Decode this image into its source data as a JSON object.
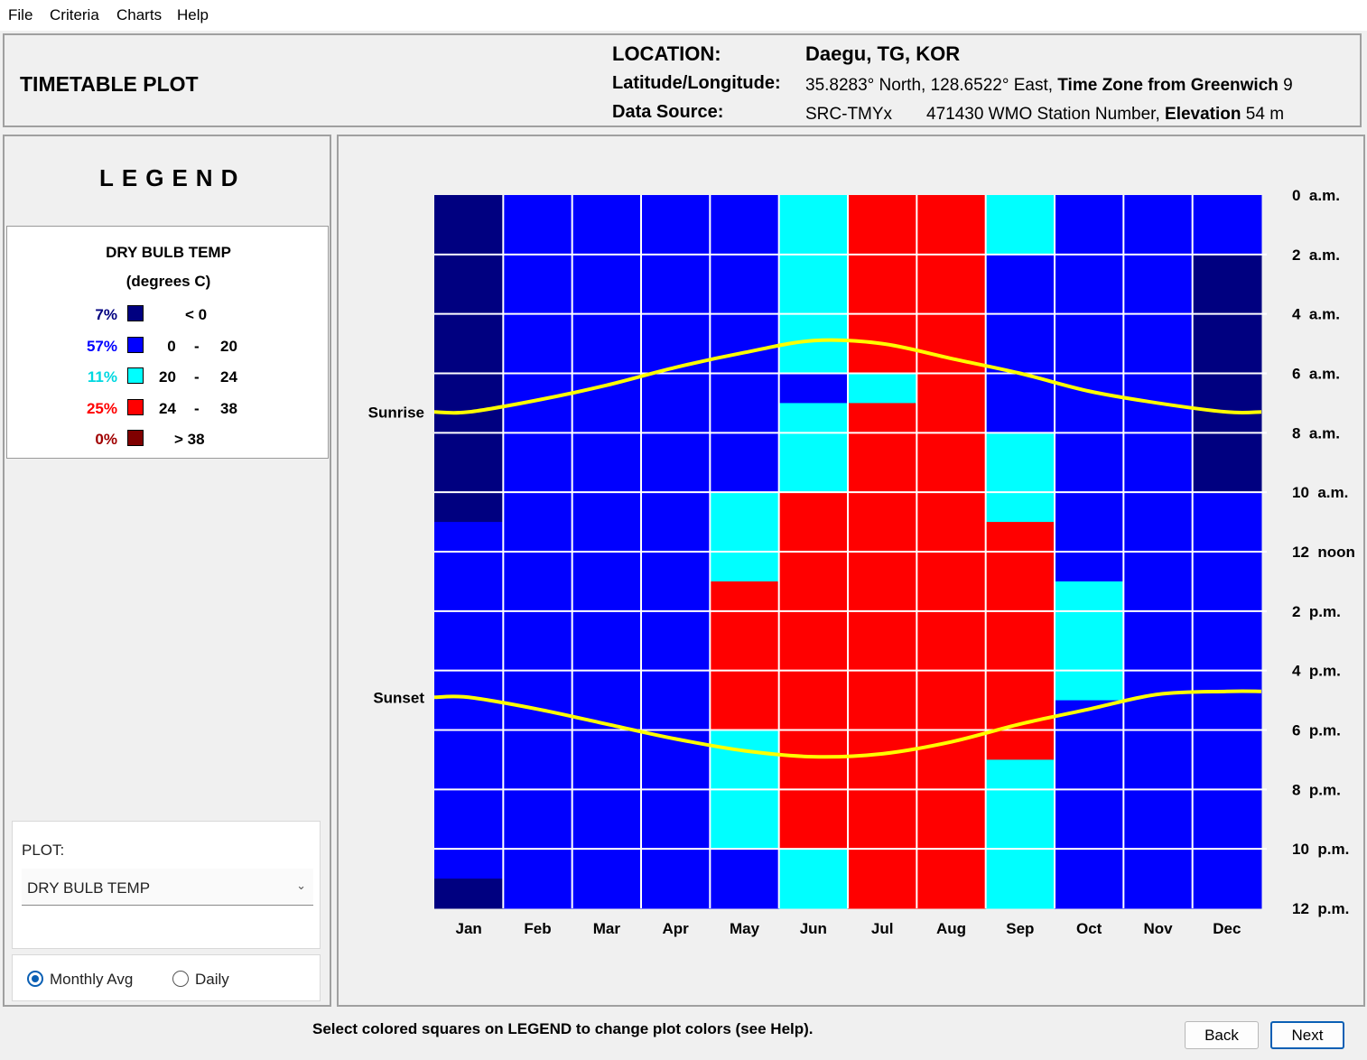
{
  "menu": [
    "File",
    "Criteria",
    "Charts",
    "Help"
  ],
  "header": {
    "title": "TIMETABLE PLOT",
    "location_label": "LOCATION:",
    "location_value": "Daegu, TG, KOR",
    "latlon_label": "Latitude/Longitude:",
    "latlon_value": "35.8283° North, 128.6522° East,",
    "tz_label": "Time Zone from Greenwich",
    "tz_value": "9",
    "source_label": "Data Source:",
    "source_value": "SRC-TMYx",
    "station_value": "471430 WMO Station Number,",
    "elevation_label": "Elevation",
    "elevation_value": "54 m"
  },
  "legend": {
    "title": "LEGEND",
    "variable": "DRY BULB TEMP",
    "units": "(degrees C)",
    "rows": [
      {
        "pct": "7%",
        "low": "< 0",
        "dash": "",
        "high": "",
        "color": "#000080"
      },
      {
        "pct": "57%",
        "low": "0",
        "dash": "-",
        "high": "20",
        "color": "#0000ff"
      },
      {
        "pct": "11%",
        "low": "20",
        "dash": "-",
        "high": "24",
        "color": "#00ffff"
      },
      {
        "pct": "25%",
        "low": "24",
        "dash": "-",
        "high": "38",
        "color": "#ff0000"
      },
      {
        "pct": "0%",
        "low": "> 38",
        "dash": "",
        "high": "",
        "color": "#800000"
      }
    ]
  },
  "plot": {
    "label": "PLOT:",
    "selected": "DRY BULB TEMP",
    "radio_monthly": "Monthly Avg",
    "radio_daily": "Daily",
    "selected_mode": "Monthly Avg"
  },
  "footer": {
    "note_prefix": "Select colored squares on ",
    "note_bold": "LEGEND",
    "note_suffix": " to change plot colors (see Help).",
    "back": "Back",
    "next": "Next"
  },
  "chart_data": {
    "type": "heatmap",
    "x_categories": [
      "Jan",
      "Feb",
      "Mar",
      "Apr",
      "May",
      "Jun",
      "Jul",
      "Aug",
      "Sep",
      "Oct",
      "Nov",
      "Dec"
    ],
    "y_tick_labels": [
      "0  a.m.",
      "2  a.m.",
      "4  a.m.",
      "6  a.m.",
      "8  a.m.",
      "10  a.m.",
      "12  noon",
      "2  p.m.",
      "4  p.m.",
      "6  p.m.",
      "8  p.m.",
      "10  p.m.",
      "12  p.m."
    ],
    "y_range_hours": [
      0,
      24
    ],
    "color_classes": [
      "#000080",
      "#0000ff",
      "#00ffff",
      "#ff0000",
      "#800000"
    ],
    "hour_classes_by_month": [
      [
        0,
        0,
        0,
        0,
        0,
        0,
        0,
        0,
        0,
        0,
        0,
        1,
        1,
        1,
        1,
        1,
        1,
        1,
        1,
        1,
        1,
        1,
        1,
        0
      ],
      [
        1,
        1,
        1,
        1,
        1,
        1,
        1,
        1,
        1,
        1,
        1,
        1,
        1,
        1,
        1,
        1,
        1,
        1,
        1,
        1,
        1,
        1,
        1,
        1
      ],
      [
        1,
        1,
        1,
        1,
        1,
        1,
        1,
        1,
        1,
        1,
        1,
        1,
        1,
        1,
        1,
        1,
        1,
        1,
        1,
        1,
        1,
        1,
        1,
        1
      ],
      [
        1,
        1,
        1,
        1,
        1,
        1,
        1,
        1,
        1,
        1,
        1,
        1,
        1,
        1,
        1,
        1,
        1,
        1,
        1,
        1,
        1,
        1,
        1,
        1
      ],
      [
        1,
        1,
        1,
        1,
        1,
        1,
        1,
        1,
        1,
        1,
        2,
        2,
        2,
        3,
        3,
        3,
        3,
        3,
        2,
        2,
        2,
        2,
        1,
        1
      ],
      [
        2,
        2,
        2,
        2,
        2,
        2,
        1,
        2,
        2,
        2,
        3,
        3,
        3,
        3,
        3,
        3,
        3,
        3,
        3,
        3,
        3,
        3,
        2,
        2
      ],
      [
        3,
        3,
        3,
        3,
        3,
        3,
        2,
        3,
        3,
        3,
        3,
        3,
        3,
        3,
        3,
        3,
        3,
        3,
        3,
        3,
        3,
        3,
        3,
        3
      ],
      [
        3,
        3,
        3,
        3,
        3,
        3,
        3,
        3,
        3,
        3,
        3,
        3,
        3,
        3,
        3,
        3,
        3,
        3,
        3,
        3,
        3,
        3,
        3,
        3
      ],
      [
        2,
        2,
        1,
        1,
        1,
        1,
        1,
        1,
        2,
        2,
        2,
        3,
        3,
        3,
        3,
        3,
        3,
        3,
        3,
        2,
        2,
        2,
        2,
        2
      ],
      [
        1,
        1,
        1,
        1,
        1,
        1,
        1,
        1,
        1,
        1,
        1,
        1,
        1,
        2,
        2,
        2,
        2,
        1,
        1,
        1,
        1,
        1,
        1,
        1
      ],
      [
        1,
        1,
        1,
        1,
        1,
        1,
        1,
        1,
        1,
        1,
        1,
        1,
        1,
        1,
        1,
        1,
        1,
        1,
        1,
        1,
        1,
        1,
        1,
        1
      ],
      [
        1,
        1,
        0,
        0,
        0,
        0,
        0,
        0,
        0,
        0,
        1,
        1,
        1,
        1,
        1,
        1,
        1,
        1,
        1,
        1,
        1,
        1,
        1,
        1
      ]
    ],
    "sunrise_label": "Sunrise",
    "sunset_label": "Sunset",
    "sunrise_hour_by_month": [
      7.3,
      6.9,
      6.4,
      5.8,
      5.3,
      4.9,
      5.0,
      5.5,
      6.0,
      6.6,
      7.0,
      7.3
    ],
    "sunset_hour_by_month": [
      16.9,
      17.3,
      17.8,
      18.3,
      18.7,
      18.9,
      18.8,
      18.4,
      17.8,
      17.3,
      16.8,
      16.7
    ],
    "line_color": "#ffff00",
    "grid": true
  }
}
